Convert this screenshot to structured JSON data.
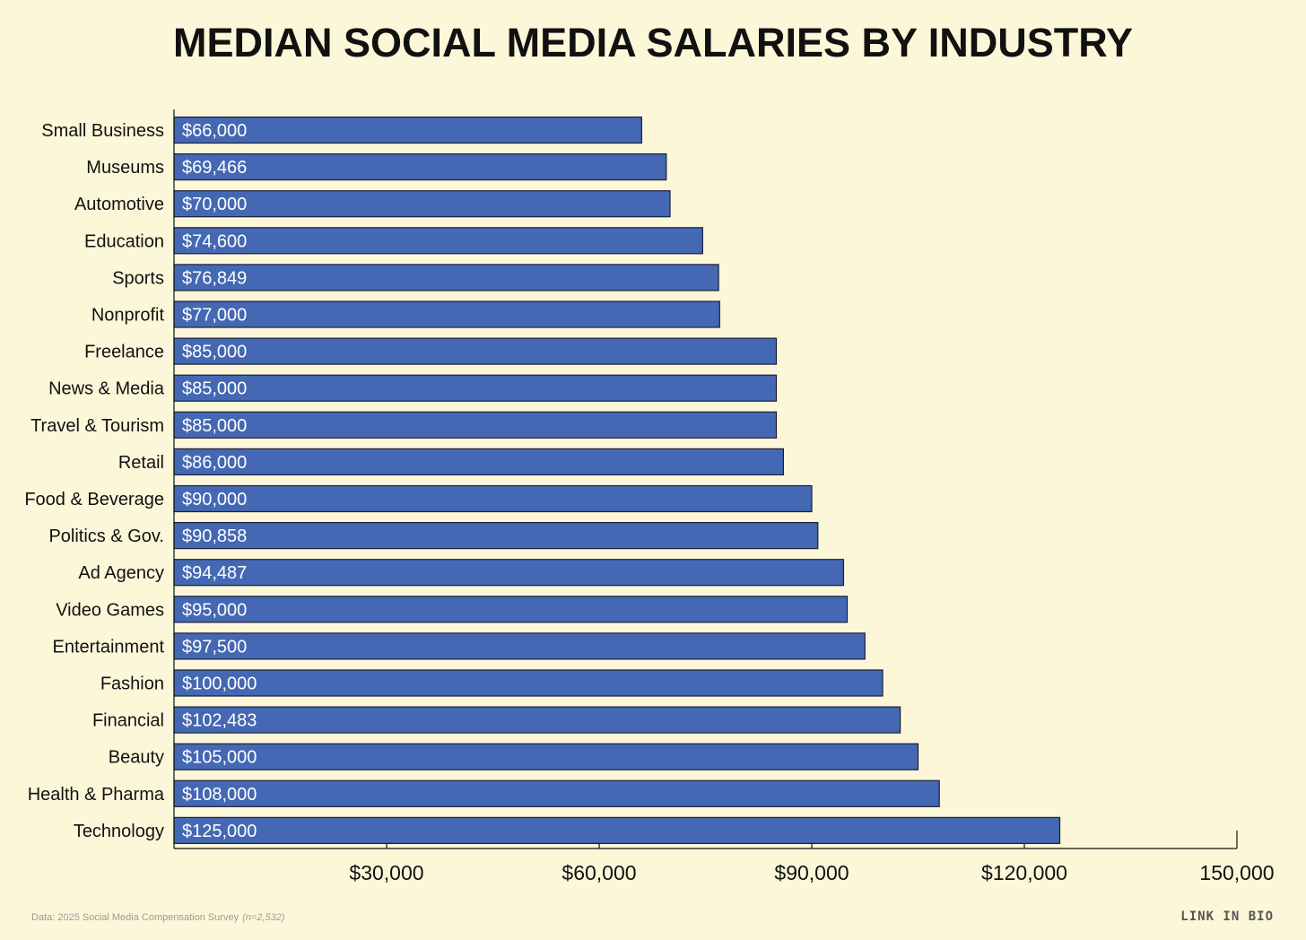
{
  "chart_data": {
    "type": "bar",
    "orientation": "horizontal",
    "title": "MEDIAN SOCIAL MEDIA SALARIES BY INDUSTRY",
    "categories": [
      "Small Business",
      "Museums",
      "Automotive",
      "Education",
      "Sports",
      "Nonprofit",
      "Freelance",
      "News & Media",
      "Travel & Tourism",
      "Retail",
      "Food & Beverage",
      "Politics & Gov.",
      "Ad Agency",
      "Video Games",
      "Entertainment",
      "Fashion",
      "Financial",
      "Beauty",
      "Health & Pharma",
      "Technology"
    ],
    "values": [
      66000,
      69466,
      70000,
      74600,
      76849,
      77000,
      85000,
      85000,
      85000,
      86000,
      90000,
      90858,
      94487,
      95000,
      97500,
      100000,
      102483,
      105000,
      108000,
      125000
    ],
    "value_labels": [
      "$66,000",
      "$69,466",
      "$70,000",
      "$74,600",
      "$76,849",
      "$77,000",
      "$85,000",
      "$85,000",
      "$85,000",
      "$86,000",
      "$90,000",
      "$90,858",
      "$94,487",
      "$95,000",
      "$97,500",
      "$100,000",
      "$102,483",
      "$105,000",
      "$108,000",
      "$125,000"
    ],
    "xlim": [
      0,
      150000
    ],
    "x_ticks": [
      30000,
      60000,
      90000,
      120000,
      150000
    ],
    "x_tick_labels": [
      "$30,000",
      "$60,000",
      "$90,000",
      "$120,000",
      "150,000"
    ],
    "xlabel": "",
    "ylabel": "",
    "grid": false,
    "legend": false
  },
  "colors": {
    "background": "#fdf7d9",
    "bar_fill": "#4468b3",
    "bar_stroke": "#1b1f3a",
    "bar_label": "#ffffff",
    "axis": "#111111"
  },
  "footer": {
    "source": "Data: 2025 Social Media Compensation Survey",
    "sample": "(n=2,532)",
    "brand": "LINK IN BIO"
  }
}
